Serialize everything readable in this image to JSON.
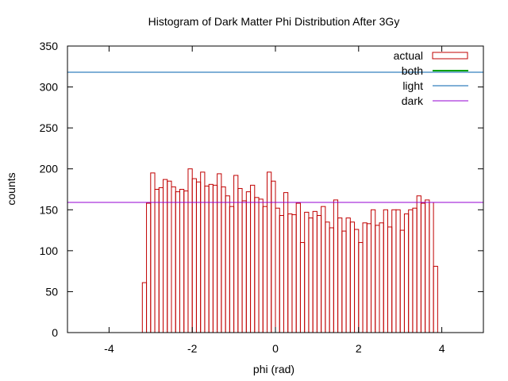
{
  "chart_data": {
    "type": "bar",
    "title": "Histogram of Dark Matter Phi Distribution After 3Gy",
    "xlabel": "phi (rad)",
    "ylabel": "counts",
    "xlim": [
      -5,
      5
    ],
    "ylim": [
      0,
      350
    ],
    "xticks": [
      -4,
      -2,
      0,
      2,
      4
    ],
    "yticks": [
      0,
      50,
      100,
      150,
      200,
      250,
      300,
      350
    ],
    "grid": false,
    "legend_position": "top-right",
    "bin_width": 0.1,
    "series": [
      {
        "name": "actual",
        "style": "histogram-outline",
        "color": "#c00000",
        "bin_start": -3.2,
        "values": [
          61,
          158,
          195,
          175,
          177,
          187,
          185,
          178,
          172,
          175,
          173,
          200,
          188,
          184,
          196,
          179,
          181,
          180,
          194,
          178,
          167,
          154,
          192,
          176,
          161,
          172,
          180,
          165,
          163,
          154,
          196,
          185,
          152,
          143,
          171,
          145,
          144,
          158,
          110,
          147,
          140,
          148,
          143,
          154,
          135,
          128,
          162,
          140,
          124,
          140,
          135,
          126,
          110,
          134,
          133,
          150,
          131,
          134,
          150,
          129,
          150,
          150,
          125,
          145,
          150,
          152,
          167,
          158,
          162,
          159,
          81
        ]
      },
      {
        "name": "both",
        "style": "line",
        "color": "#00a000",
        "y": 318
      },
      {
        "name": "light",
        "style": "line",
        "color": "#0060ad",
        "y": 318
      },
      {
        "name": "dark",
        "style": "line",
        "color": "#9400d3",
        "y": 159
      }
    ]
  }
}
